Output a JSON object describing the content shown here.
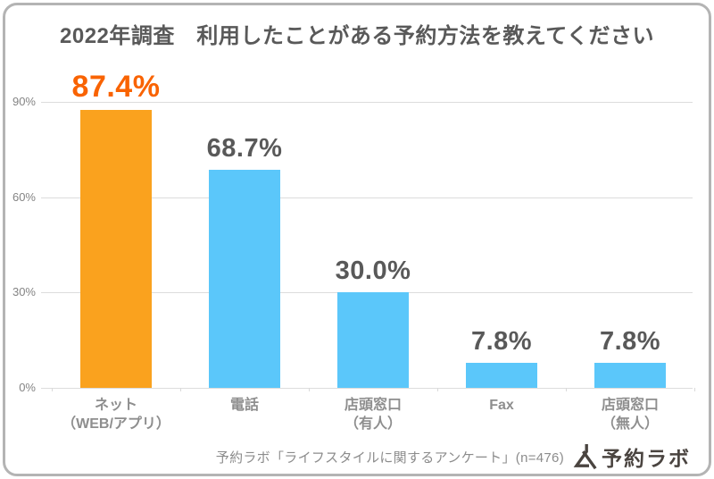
{
  "title": "2022年調査　利用したことがある予約方法を教えてください",
  "chart_data": {
    "type": "bar",
    "title": "2022年調査　利用したことがある予約方法を教えてください",
    "categories": [
      "ネット\n（WEB/アプリ）",
      "電話",
      "店頭窓口\n（有人）",
      "Fax",
      "店頭窓口\n（無人）"
    ],
    "values": [
      87.4,
      68.7,
      30.0,
      7.8,
      7.8
    ],
    "value_labels": [
      "87.4%",
      "68.7%",
      "30.0%",
      "7.8%",
      "7.8%"
    ],
    "bar_colors": [
      "#FAA21E",
      "#5BC7FA",
      "#5BC7FA",
      "#5BC7FA",
      "#5BC7FA"
    ],
    "value_label_colors": [
      "#F96302",
      "#595959",
      "#595959",
      "#595959",
      "#595959"
    ],
    "highlight_index": 0,
    "xlabel": "",
    "ylabel": "",
    "ylim": [
      0,
      90
    ],
    "yticks": [
      {
        "value": 90,
        "label": "90%"
      },
      {
        "value": 60,
        "label": "60%"
      },
      {
        "value": 30,
        "label": "30%"
      },
      {
        "value": 0,
        "label": "0%"
      }
    ],
    "grid": true,
    "legend_position": "none"
  },
  "footer": {
    "source_text": "予約ラボ「ライフスタイルに関するアンケート」(n=476)",
    "logo_text": "予約ラボ",
    "logo_icon": "flask-icon"
  },
  "colors": {
    "title_text": "#595959",
    "bar_default": "#5BC7FA",
    "bar_highlight": "#FAA21E",
    "value_highlight": "#F96302",
    "gridline": "#dcdcdc",
    "frame_border": "#b4b4b4",
    "axis_text": "#848484",
    "category_text": "#8e8e8e",
    "footer_text": "#8c8c8c",
    "logo_text": "#4a4440"
  }
}
